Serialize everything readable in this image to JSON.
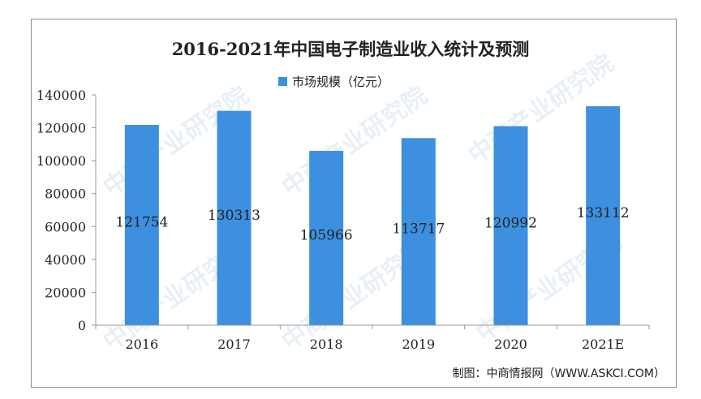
{
  "watermark": "中商产业研究院",
  "source_note": "制图：中商情报网（WWW.ASKCI.COM）",
  "colors": {
    "bar": "#3d8fe0",
    "axis": "#999999",
    "text": "#222222"
  },
  "chart_data": {
    "type": "bar",
    "title": "2016-2021年中国电子制造业收入统计及预测",
    "legend_position": "top-center",
    "grid": false,
    "categories": [
      "2016",
      "2017",
      "2018",
      "2019",
      "2020",
      "2021E"
    ],
    "series": [
      {
        "name": "市场规模（亿元）",
        "values": [
          121754,
          130313,
          105966,
          113717,
          120992,
          133112
        ]
      }
    ],
    "data_labels": [
      "121754",
      "130313",
      "105966",
      "113717",
      "120992",
      "133112"
    ],
    "ylim": [
      0,
      140000
    ],
    "yticks": [
      "0",
      "20000",
      "40000",
      "60000",
      "80000",
      "100000",
      "120000",
      "140000"
    ],
    "xlabel": "",
    "ylabel": ""
  }
}
